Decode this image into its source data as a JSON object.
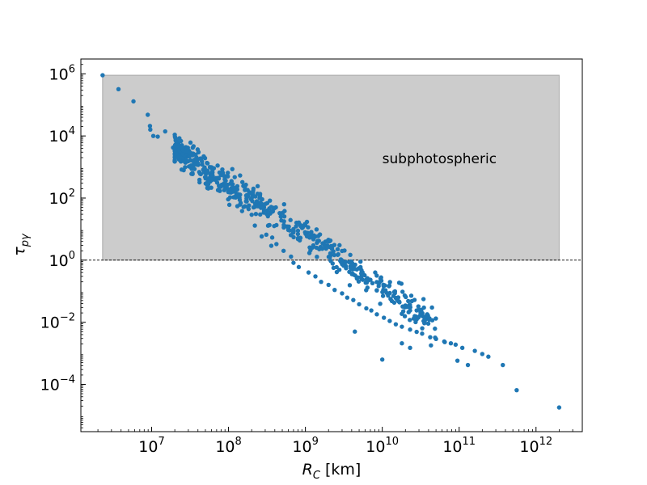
{
  "chart_data": {
    "type": "scatter",
    "xlabel": {
      "main": "R",
      "sub": "C",
      "suffix": " [km]"
    },
    "ylabel": {
      "main": "τ",
      "sub": "pγ"
    },
    "x_scale": "log",
    "y_scale": "log",
    "xlim": [
      1200000.0,
      4000000000000.0
    ],
    "ylim": [
      3e-06,
      3000000.0
    ],
    "xticks": [
      {
        "value": 10000000.0,
        "base": "10",
        "exp": "7"
      },
      {
        "value": 100000000.0,
        "base": "10",
        "exp": "8"
      },
      {
        "value": 1000000000.0,
        "base": "10",
        "exp": "9"
      },
      {
        "value": 10000000000.0,
        "base": "10",
        "exp": "10"
      },
      {
        "value": 100000000000.0,
        "base": "10",
        "exp": "11"
      },
      {
        "value": 1000000000000.0,
        "base": "10",
        "exp": "12"
      }
    ],
    "yticks": [
      {
        "value": 0.0001,
        "base": "10",
        "exp": "−4"
      },
      {
        "value": 0.01,
        "base": "10",
        "exp": "−2"
      },
      {
        "value": 1,
        "base": "10",
        "exp": "0"
      },
      {
        "value": 100.0,
        "base": "10",
        "exp": "2"
      },
      {
        "value": 10000.0,
        "base": "10",
        "exp": "4"
      },
      {
        "value": 1000000.0,
        "base": "10",
        "exp": "6"
      }
    ],
    "region": {
      "label": "subphotospheric",
      "x": [
        2300000.0,
        2000000000000.0
      ],
      "y": [
        1,
        900000.0
      ],
      "color": "#cccccc"
    },
    "reference_line": {
      "y": 1,
      "style": "dashed"
    },
    "annotation_position": {
      "x": 10000000000.0,
      "y": 100
    },
    "marker_color": "#1f77b4",
    "grid": false,
    "legend": "none",
    "points": [
      [
        2300000.0,
        900000.0
      ],
      [
        3700000.0,
        320000.0
      ],
      [
        5800000.0,
        130000.0
      ],
      [
        8900000.0,
        48000.0
      ],
      [
        9500000.0,
        21000.0
      ],
      [
        9600000.0,
        16000.0
      ],
      [
        10500000.0,
        10000.0
      ],
      [
        15000000.0,
        14000.0
      ],
      [
        12000000.0,
        9500.0
      ],
      [
        19000000.0,
        4200.0
      ],
      [
        20000000.0,
        3300.0
      ],
      [
        24000000.0,
        1500.0
      ],
      [
        29000000.0,
        3500.0
      ],
      [
        33000000.0,
        600.0
      ],
      [
        38000000.0,
        1200.0
      ],
      [
        42000000.0,
        320.0
      ],
      [
        53000000.0,
        210.0
      ],
      [
        58000000.0,
        610.0
      ],
      [
        62000000.0,
        450.0
      ],
      [
        68000000.0,
        380.0
      ],
      [
        73000000.0,
        180.0
      ],
      [
        79000000.0,
        230.0
      ],
      [
        88000000.0,
        180.0
      ],
      [
        98000000.0,
        650.0
      ],
      [
        110000000.0,
        290.0
      ],
      [
        130000000.0,
        240.0
      ],
      [
        150000000.0,
        38.0
      ],
      [
        170000000.0,
        120.0
      ],
      [
        200000000.0,
        29.0
      ],
      [
        220000000.0,
        13.0
      ],
      [
        270000000.0,
        5.8
      ],
      [
        310000000.0,
        6.6
      ],
      [
        360000000.0,
        2.9
      ],
      [
        420000000.0,
        3.3
      ],
      [
        520000000.0,
        2.0
      ],
      [
        650000000.0,
        1.3
      ],
      [
        700000000.0,
        0.82
      ],
      [
        820000000.0,
        0.6
      ],
      [
        1100000000.0,
        0.4
      ],
      [
        1350000000.0,
        0.3
      ],
      [
        1600000000.0,
        0.2
      ],
      [
        2000000000.0,
        0.16
      ],
      [
        2400000000.0,
        0.11
      ],
      [
        3000000000.0,
        0.085
      ],
      [
        3500000000.0,
        0.062
      ],
      [
        4200000000.0,
        0.052
      ],
      [
        5000000000.0,
        0.038
      ],
      [
        6200000000.0,
        0.028
      ],
      [
        7200000000.0,
        0.024
      ],
      [
        8500000000.0,
        0.018
      ],
      [
        10500000000.0,
        0.014
      ],
      [
        12500000000.0,
        0.011
      ],
      [
        15000000000.0,
        0.0086
      ],
      [
        18000000000.0,
        0.0072
      ],
      [
        23000000000.0,
        0.0058
      ],
      [
        28000000000.0,
        0.0049
      ],
      [
        33000000000.0,
        0.0043
      ],
      [
        42000000000.0,
        0.0033
      ],
      [
        50000000000.0,
        0.0029
      ],
      [
        65000000000.0,
        0.0023
      ],
      [
        78000000000.0,
        0.0021
      ],
      [
        90000000000.0,
        0.0019
      ],
      [
        110000000000.0,
        0.0015
      ],
      [
        160000000000.0,
        0.0012
      ],
      [
        200000000000.0,
        0.00095
      ],
      [
        240000000000.0,
        0.00078
      ],
      [
        370000000000.0,
        0.00042
      ],
      [
        560000000000.0,
        6.5e-05
      ],
      [
        2000000000000.0,
        1.8e-05
      ],
      [
        28000000000.0,
        0.024
      ],
      [
        10000000000.0,
        0.00063
      ],
      [
        23000000000.0,
        0.0015
      ],
      [
        4400000000.0,
        0.005
      ],
      [
        18000000000.0,
        0.0021
      ],
      [
        43000000000.0,
        0.0018
      ],
      [
        64000000000.0,
        0.0024
      ],
      [
        95000000000.0,
        0.00058
      ],
      [
        130000000000.0,
        0.00042
      ]
    ]
  }
}
